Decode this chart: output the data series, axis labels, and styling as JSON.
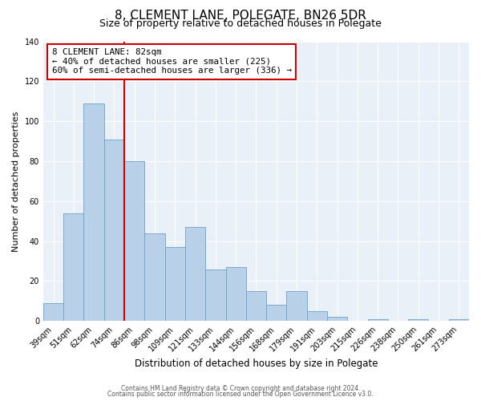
{
  "title": "8, CLEMENT LANE, POLEGATE, BN26 5DR",
  "subtitle": "Size of property relative to detached houses in Polegate",
  "xlabel": "Distribution of detached houses by size in Polegate",
  "ylabel": "Number of detached properties",
  "categories": [
    "39sqm",
    "51sqm",
    "62sqm",
    "74sqm",
    "86sqm",
    "98sqm",
    "109sqm",
    "121sqm",
    "133sqm",
    "144sqm",
    "156sqm",
    "168sqm",
    "179sqm",
    "191sqm",
    "203sqm",
    "215sqm",
    "226sqm",
    "238sqm",
    "250sqm",
    "261sqm",
    "273sqm"
  ],
  "values": [
    9,
    54,
    109,
    91,
    80,
    44,
    37,
    47,
    26,
    27,
    15,
    8,
    15,
    5,
    2,
    0,
    1,
    0,
    1,
    0,
    1
  ],
  "bar_color": "#b8d0e8",
  "bar_edge_color": "#6fa0c8",
  "vline_color": "#cc0000",
  "annotation_text": "8 CLEMENT LANE: 82sqm\n← 40% of detached houses are smaller (225)\n60% of semi-detached houses are larger (336) →",
  "annotation_box_color": "#cc0000",
  "ylim": [
    0,
    140
  ],
  "yticks": [
    0,
    20,
    40,
    60,
    80,
    100,
    120,
    140
  ],
  "footer_line1": "Contains HM Land Registry data © Crown copyright and database right 2024.",
  "footer_line2": "Contains public sector information licensed under the Open Government Licence v3.0.",
  "plot_bg_color": "#eaf0f8",
  "grid_color": "#ffffff",
  "title_fontsize": 11,
  "subtitle_fontsize": 9,
  "ylabel_fontsize": 8,
  "xlabel_fontsize": 8.5,
  "tick_fontsize": 7,
  "annotation_fontsize": 7.8,
  "footer_fontsize": 5.5
}
